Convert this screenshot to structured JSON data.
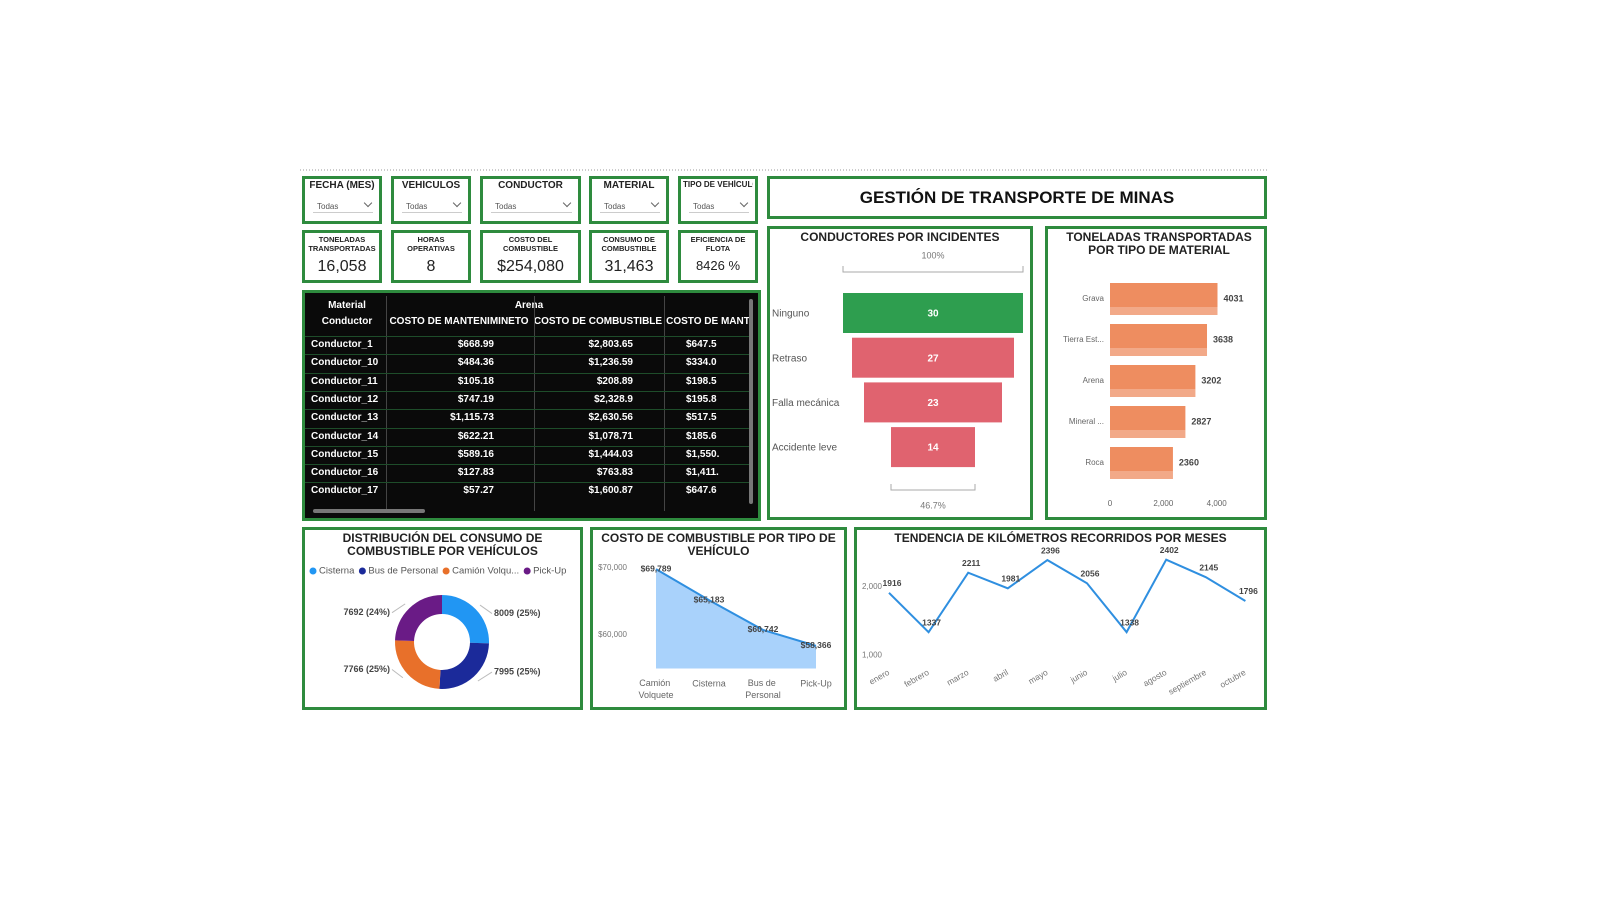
{
  "header": {
    "title": "GESTIÓN DE TRANSPORTE DE MINAS"
  },
  "slicers": [
    {
      "label": "FECHA (MES)",
      "value": "Todas"
    },
    {
      "label": "VEHÍCULOS",
      "value": "Todas"
    },
    {
      "label": "CONDUCTOR",
      "value": "Todas"
    },
    {
      "label": "MATERIAL",
      "value": "Todas"
    },
    {
      "label": "TIPO DE VEHÍCULO",
      "value": "Todas"
    }
  ],
  "kpis": [
    {
      "label": "TONELADAS TRANSPORTADAS",
      "value": "16,058"
    },
    {
      "label": "HORAS OPERATIVAS",
      "value": "8"
    },
    {
      "label": "COSTO DEL COMBUSTIBLE",
      "value": "$254,080"
    },
    {
      "label": "CONSUMO DE COMBUSTIBLE",
      "value": "31,463"
    },
    {
      "label": "EFICIENCIA DE FLOTA",
      "value": "8426 %"
    }
  ],
  "table": {
    "group_header": [
      "Material",
      "Arena"
    ],
    "columns": [
      "Conductor",
      "COSTO DE MANTENIMINETO",
      "COSTO DE COMBUSTIBLE",
      "COSTO DE MANT"
    ],
    "rows": [
      [
        "Conductor_1",
        "$668.99",
        "$2,803.65",
        "$647.5"
      ],
      [
        "Conductor_10",
        "$484.36",
        "$1,236.59",
        "$334.0"
      ],
      [
        "Conductor_11",
        "$105.18",
        "$208.89",
        "$198.5"
      ],
      [
        "Conductor_12",
        "$747.19",
        "$2,328.9",
        "$195.8"
      ],
      [
        "Conductor_13",
        "$1,115.73",
        "$2,630.56",
        "$517.5"
      ],
      [
        "Conductor_14",
        "$622.21",
        "$1,078.71",
        "$185.6"
      ],
      [
        "Conductor_15",
        "$589.16",
        "$1,444.03",
        "$1,550."
      ],
      [
        "Conductor_16",
        "$127.83",
        "$763.83",
        "$1,411."
      ],
      [
        "Conductor_17",
        "$57.27",
        "$1,600.87",
        "$647.6"
      ]
    ]
  },
  "chart_data": [
    {
      "type": "funnel",
      "title": "CONDUCTORES POR INCIDENTES",
      "categories": [
        "Ninguno",
        "Retraso",
        "Falla mecánica",
        "Accidente leve"
      ],
      "values": [
        30,
        27,
        23,
        14
      ],
      "colors": [
        "#2e9e4f",
        "#e0636f",
        "#e0636f",
        "#e0636f"
      ],
      "top_label": "100%",
      "bottom_label": "46.7%"
    },
    {
      "type": "hbar",
      "title": "TONELADAS TRANSPORTADAS POR TIPO DE MATERIAL",
      "categories": [
        "Grava",
        "Tierra Est...",
        "Arena",
        "Mineral ...",
        "Roca"
      ],
      "values": [
        4031,
        3638,
        3202,
        2827,
        2360
      ],
      "color": "#ee8d60",
      "xlim": [
        0,
        4200
      ],
      "xticks": [
        0,
        {
          "value": 2000,
          "label": "2,000"
        },
        {
          "value": 4000,
          "label": "4,000"
        }
      ]
    },
    {
      "type": "donut",
      "title": "DISTRIBUCIÓN DEL CONSUMO DE COMBUSTIBLE POR VEHÍCULOS",
      "categories": [
        "Cisterna",
        "Bus de Personal",
        "Camión Volqu...",
        "Pick-Up"
      ],
      "values": [
        8009,
        7995,
        7766,
        7692
      ],
      "value_labels": [
        "8009 (25%)",
        "7995 (25%)",
        "7766 (25%)",
        "7692 (24%)"
      ],
      "colors": [
        "#2196f3",
        "#1b2a9a",
        "#e8702a",
        "#6a1b86"
      ]
    },
    {
      "type": "area",
      "title": "COSTO DE COMBUSTIBLE POR TIPO DE VEHÍCULO",
      "categories": [
        "Camión Volquete",
        "Cisterna",
        "Bus de Personal",
        "Pick-Up"
      ],
      "values": [
        69789,
        65183,
        60742,
        58366
      ],
      "value_labels": [
        "$69,789",
        "$65,183",
        "$60,742",
        "$58,366"
      ],
      "color": "#2f8fe0",
      "fill": "#a9d2fb",
      "ylim": [
        55000,
        71000
      ],
      "yticks": [
        {
          "value": 60000,
          "label": "$60,000"
        },
        {
          "value": 70000,
          "label": "$70,000"
        }
      ]
    },
    {
      "type": "line",
      "title": "TENDENCIA DE KILÓMETROS RECORRIDOS POR MESES",
      "categories": [
        "enero",
        "febrero",
        "marzo",
        "abril",
        "mayo",
        "junio",
        "julio",
        "agosto",
        "septiembre",
        "octubre"
      ],
      "values": [
        1916,
        1337,
        2211,
        1981,
        2396,
        2056,
        1338,
        2402,
        2145,
        1796
      ],
      "color": "#2f8fe0",
      "ylim": [
        900,
        2500
      ],
      "yticks": [
        {
          "value": 1000,
          "label": "1,000"
        },
        {
          "value": 2000,
          "label": "2,000"
        }
      ]
    }
  ]
}
